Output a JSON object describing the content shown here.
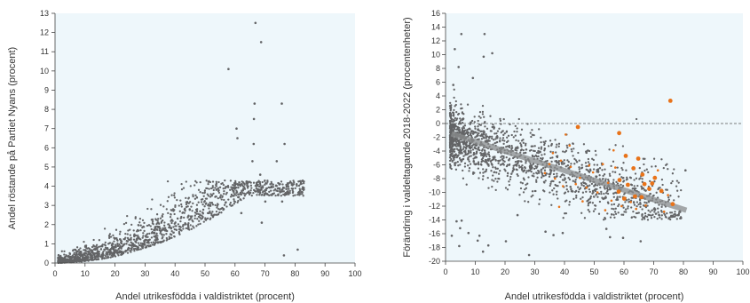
{
  "chart_data": [
    {
      "type": "scatter",
      "xlabel": "Andel utrikesfödda i valdistriktet (procent)",
      "ylabel": "Andel röstande på Partiet Nyans (procent)",
      "xlim": [
        0,
        100
      ],
      "ylim": [
        0,
        13
      ],
      "xticks": [
        0,
        10,
        20,
        30,
        40,
        50,
        60,
        70,
        80,
        90,
        100
      ],
      "yticks": [
        0,
        1,
        2,
        3,
        4,
        5,
        6,
        7,
        8,
        9,
        10,
        11,
        12,
        13
      ],
      "grid": false,
      "background": "#eef7fb",
      "point_color": "#636466",
      "outliers": [
        {
          "x": 66.8,
          "y": 12.5
        },
        {
          "x": 68.7,
          "y": 11.5
        },
        {
          "x": 57.8,
          "y": 10.1
        },
        {
          "x": 66.5,
          "y": 8.3
        },
        {
          "x": 75.6,
          "y": 8.3
        },
        {
          "x": 66.3,
          "y": 7.5
        },
        {
          "x": 60.5,
          "y": 7.0
        },
        {
          "x": 60.8,
          "y": 6.5
        },
        {
          "x": 76.5,
          "y": 6.2
        },
        {
          "x": 66.2,
          "y": 6.2
        },
        {
          "x": 65.8,
          "y": 5.3
        },
        {
          "x": 73.9,
          "y": 5.3
        },
        {
          "x": 68.4,
          "y": 4.6
        },
        {
          "x": 64.2,
          "y": 4.2
        },
        {
          "x": 67.1,
          "y": 4.0
        },
        {
          "x": 59.6,
          "y": 3.5
        },
        {
          "x": 70.1,
          "y": 3.2
        },
        {
          "x": 75.7,
          "y": 3.2
        },
        {
          "x": 62.1,
          "y": 2.6
        },
        {
          "x": 68.9,
          "y": 2.1
        },
        {
          "x": 80.9,
          "y": 0.7
        },
        {
          "x": 76.3,
          "y": 0.4
        },
        {
          "x": 44.9,
          "y": 2.8
        },
        {
          "x": 51.2,
          "y": 2.6
        }
      ]
    },
    {
      "type": "scatter",
      "xlabel": "Andel utrikesfödda i valdistriktet (procent)",
      "ylabel": "Förändring i valdeltagande 2018-2022 (procentenheter)",
      "xlim": [
        0,
        100
      ],
      "ylim": [
        -20,
        16
      ],
      "xticks": [
        0,
        10,
        20,
        30,
        40,
        50,
        60,
        70,
        80,
        90,
        100
      ],
      "yticks": [
        16,
        14,
        12,
        10,
        8,
        6,
        4,
        2,
        0,
        -2,
        -4,
        -6,
        -8,
        -10,
        -12,
        -14,
        -16,
        -18,
        -20
      ],
      "reference_line_y": 0,
      "trend_line": {
        "x": [
          2,
          81
        ],
        "y": [
          -1.5,
          -12.6
        ]
      },
      "grid": false,
      "background": "#eef7fb",
      "point_color": "#636466",
      "highlight_color": "#e8731a",
      "trend_color": "#8a8c8e",
      "highlighted_large": [
        {
          "x": 75.6,
          "y": 3.3
        },
        {
          "x": 58.4,
          "y": -1.4
        },
        {
          "x": 44.5,
          "y": -0.5
        },
        {
          "x": 60.6,
          "y": -4.7
        },
        {
          "x": 64.8,
          "y": -5.1
        },
        {
          "x": 63.2,
          "y": -6.5
        },
        {
          "x": 70.4,
          "y": -7.9
        },
        {
          "x": 66.2,
          "y": -7.4
        },
        {
          "x": 58.5,
          "y": -8.2
        },
        {
          "x": 61.3,
          "y": -8.9
        },
        {
          "x": 66.9,
          "y": -8.8
        },
        {
          "x": 68.5,
          "y": -9.5
        },
        {
          "x": 72.6,
          "y": -9.8
        },
        {
          "x": 63.7,
          "y": -10.6
        },
        {
          "x": 60.1,
          "y": -10.9
        },
        {
          "x": 65.9,
          "y": -10.7
        },
        {
          "x": 76.4,
          "y": -11.7
        },
        {
          "x": 69.5,
          "y": -8.7
        },
        {
          "x": 58.2,
          "y": -9.9
        }
      ],
      "highlighted_small": [
        {
          "x": 36.1,
          "y": -4.3
        },
        {
          "x": 38.8,
          "y": -5.4
        },
        {
          "x": 40.4,
          "y": -1.6
        },
        {
          "x": 42.1,
          "y": -6.3
        },
        {
          "x": 36.8,
          "y": -8.0
        },
        {
          "x": 39.5,
          "y": -9.1
        },
        {
          "x": 45.2,
          "y": -7.9
        },
        {
          "x": 47.4,
          "y": -9.3
        },
        {
          "x": 49.6,
          "y": -7.1
        },
        {
          "x": 51.1,
          "y": -10.0
        },
        {
          "x": 52.9,
          "y": -5.9
        },
        {
          "x": 54.7,
          "y": -8.6
        },
        {
          "x": 55.8,
          "y": -11.2
        },
        {
          "x": 57.1,
          "y": -6.4
        },
        {
          "x": 59.2,
          "y": -12.0
        },
        {
          "x": 62.3,
          "y": -11.4
        },
        {
          "x": 67.3,
          "y": -11.9
        },
        {
          "x": 71.4,
          "y": -6.8
        },
        {
          "x": 73.5,
          "y": -12.8
        },
        {
          "x": 74.8,
          "y": -10.4
        },
        {
          "x": 46.1,
          "y": -11.3
        },
        {
          "x": 41.7,
          "y": -3.2
        },
        {
          "x": 33.4,
          "y": -7.2
        },
        {
          "x": 34.9,
          "y": -5.9
        },
        {
          "x": 43.8,
          "y": -8.8
        },
        {
          "x": 48.3,
          "y": -6.1
        },
        {
          "x": 53.7,
          "y": -12.6
        },
        {
          "x": 64.1,
          "y": -12.4
        },
        {
          "x": 38.2,
          "y": -12.1
        },
        {
          "x": 56.5,
          "y": -3.9
        }
      ],
      "outliers": [
        {
          "x": 5.3,
          "y": 13.0
        },
        {
          "x": 13.1,
          "y": 13.0
        },
        {
          "x": 12.8,
          "y": 9.7
        },
        {
          "x": 15.7,
          "y": 10.2
        },
        {
          "x": 3.1,
          "y": 10.8
        },
        {
          "x": 4.4,
          "y": 8.2
        },
        {
          "x": 9.2,
          "y": 6.6
        },
        {
          "x": 2.6,
          "y": 5.6
        },
        {
          "x": 3.7,
          "y": -14.2
        },
        {
          "x": 4.9,
          "y": -15.2
        },
        {
          "x": 4.6,
          "y": -17.8
        },
        {
          "x": 10.8,
          "y": -17.0
        },
        {
          "x": 12.6,
          "y": -18.6
        },
        {
          "x": 14.4,
          "y": -17.7
        },
        {
          "x": 7.7,
          "y": -15.9
        },
        {
          "x": 20.3,
          "y": -17.1
        },
        {
          "x": 28.1,
          "y": -19.1
        },
        {
          "x": 36.3,
          "y": -16.2
        },
        {
          "x": 39.4,
          "y": -15.9
        },
        {
          "x": 54.1,
          "y": -15.3
        },
        {
          "x": 55.3,
          "y": -16.5
        },
        {
          "x": 59.7,
          "y": -16.6
        },
        {
          "x": 65.6,
          "y": -17.1
        },
        {
          "x": 80.7,
          "y": -6.8
        },
        {
          "x": 68.4,
          "y": -10.5
        },
        {
          "x": 24.2,
          "y": -13.3
        },
        {
          "x": 33.6,
          "y": -15.7
        },
        {
          "x": 2.1,
          "y": -16.3
        },
        {
          "x": 11.4,
          "y": -16.3
        },
        {
          "x": 5.4,
          "y": -14.1
        }
      ]
    }
  ]
}
